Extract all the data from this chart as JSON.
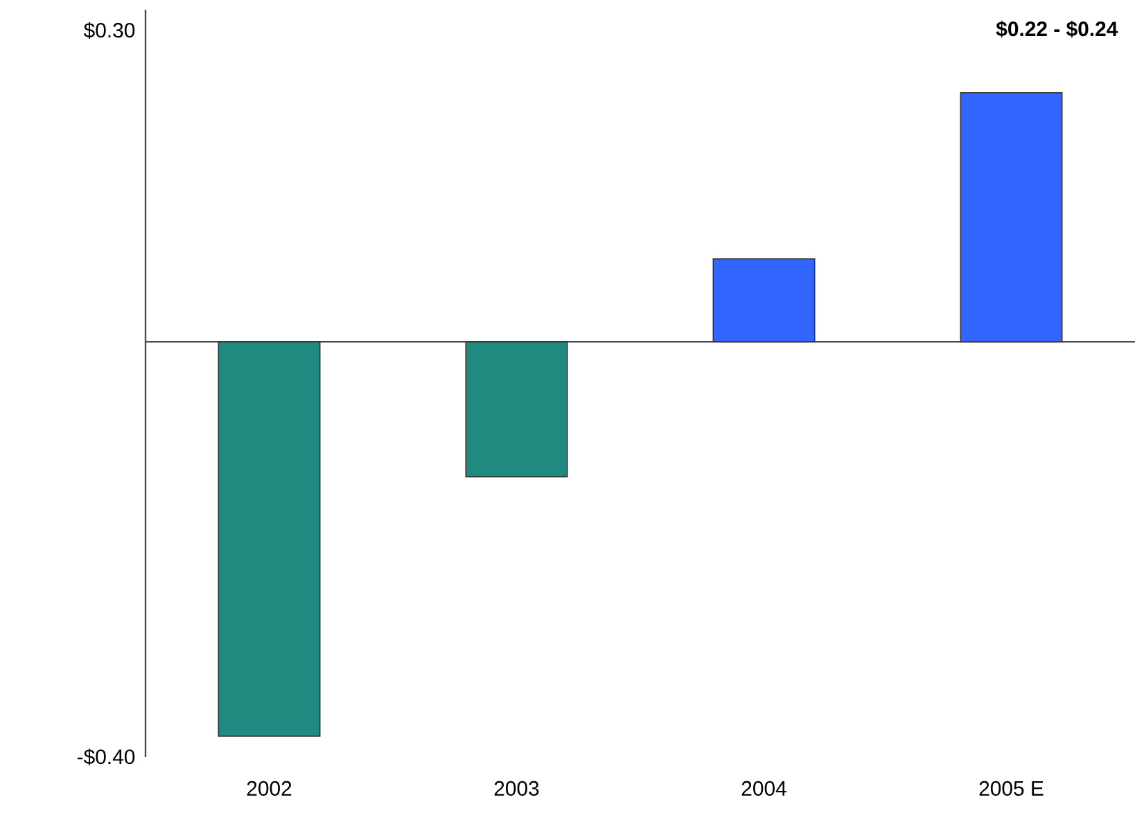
{
  "chart_data": {
    "type": "bar",
    "categories": [
      "2002",
      "2003",
      "2004",
      "2005 E"
    ],
    "values": [
      -0.38,
      -0.13,
      0.08,
      0.24
    ],
    "colors": [
      "#1f8a80",
      "#1f8a80",
      "#3366ff",
      "#3366ff"
    ],
    "ylim": [
      -0.4,
      0.32
    ],
    "yticks": [
      {
        "value": -0.4,
        "label": "-$0.40"
      },
      {
        "value": 0.3,
        "label": "$0.30"
      }
    ],
    "annotations": [
      "$0.22 - $0.24"
    ]
  }
}
